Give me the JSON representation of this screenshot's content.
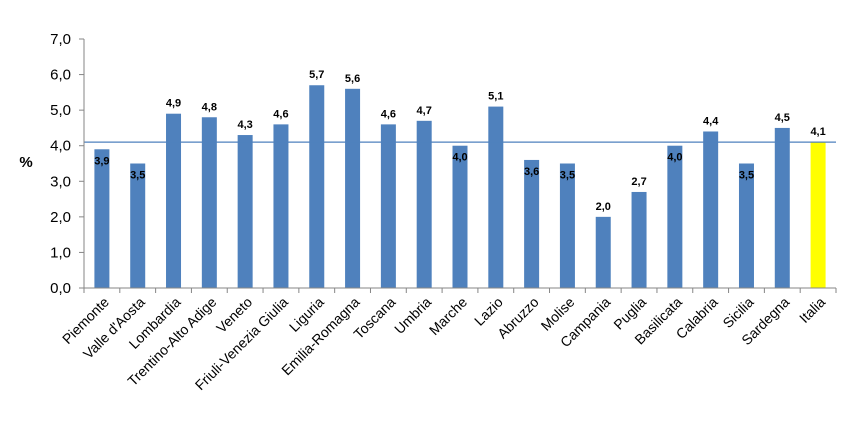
{
  "chart_data": {
    "type": "bar",
    "ylabel": "%",
    "ylim": [
      0,
      7
    ],
    "ytick_labels": [
      "0,0",
      "1,0",
      "2,0",
      "3,0",
      "4,0",
      "5,0",
      "6,0",
      "7,0"
    ],
    "categories": [
      "Piemonte",
      "Valle d'Aosta",
      "Lombardia",
      "Trentino-Alto Adige",
      "Veneto",
      "Friuli-Venezia Giulia",
      "Liguria",
      "Emilia-Romagna",
      "Toscana",
      "Umbria",
      "Marche",
      "Lazio",
      "Abruzzo",
      "Molise",
      "Campania",
      "Puglia",
      "Basilicata",
      "Calabria",
      "Sicilia",
      "Sardegna",
      "Italia"
    ],
    "values": [
      3.9,
      3.5,
      4.9,
      4.8,
      4.3,
      4.6,
      5.7,
      5.6,
      4.6,
      4.7,
      4.0,
      5.1,
      3.6,
      3.5,
      2.0,
      2.7,
      4.0,
      4.4,
      3.5,
      4.5,
      4.1
    ],
    "value_labels": [
      "3,9",
      "3,5",
      "4,9",
      "4,8",
      "4,3",
      "4,6",
      "5,7",
      "5,6",
      "4,6",
      "4,7",
      "4,0",
      "5,1",
      "3,6",
      "3,5",
      "2,0",
      "2,7",
      "4,0",
      "4,4",
      "3,5",
      "4,5",
      "4,1"
    ],
    "reference_line": 4.1,
    "grid": false,
    "legend": "none",
    "colors": {
      "bar": "#4F81BD",
      "highlight": "#FFFF00",
      "reference_line": "#4F81BD",
      "axis": "#868686"
    },
    "highlight_index": 20
  }
}
